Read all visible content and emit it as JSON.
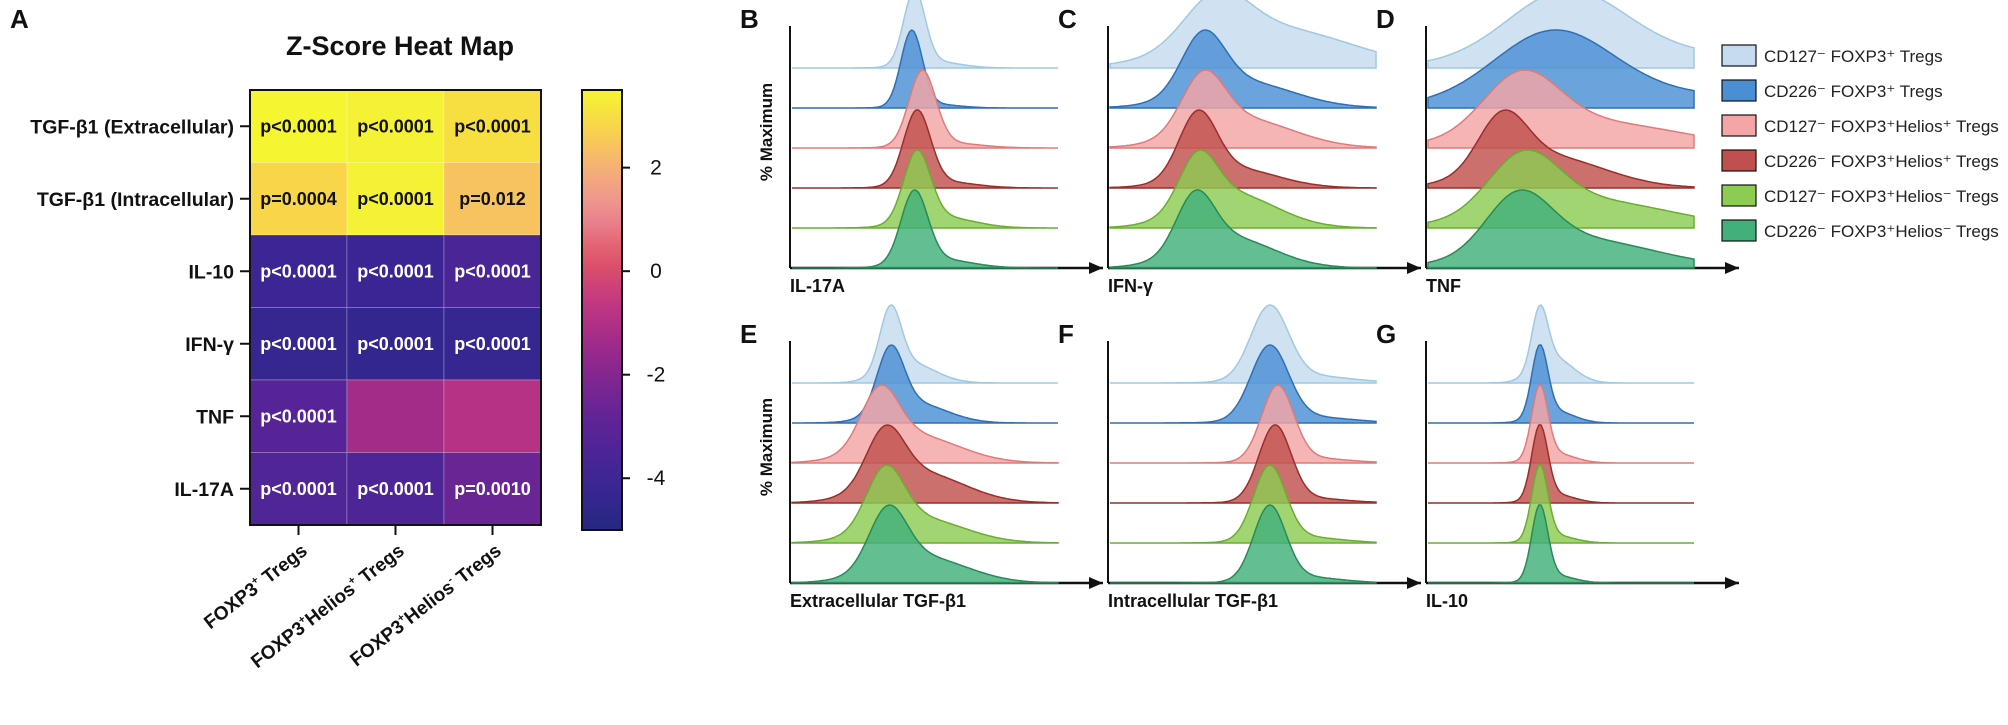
{
  "chart_data": [
    {
      "type": "heatmap",
      "panel": "A",
      "title": "Z-Score Heat Map",
      "rows": [
        "TGF-β1 (Extracellular)",
        "TGF-β1 (Intracellular)",
        "IL-10",
        "IFN-γ",
        "TNF",
        "IL-17A"
      ],
      "columns": [
        {
          "base": "FOXP3",
          "sup1": "+",
          "mid": "",
          "sup2": "",
          "tail": " Tregs"
        },
        {
          "base": "FOXP3",
          "sup1": "+",
          "mid": "Helios",
          "sup2": "+",
          "tail": " Tregs"
        },
        {
          "base": "FOXP3",
          "sup1": "+",
          "mid": "Helios",
          "sup2": "-",
          "tail": " Tregs"
        }
      ],
      "values": [
        [
          3.5,
          3.4,
          3.0
        ],
        [
          2.8,
          3.4,
          2.4
        ],
        [
          -4.0,
          -4.1,
          -3.6
        ],
        [
          -4.3,
          -4.4,
          -4.3
        ],
        [
          -3.2,
          -1.3,
          -0.9
        ],
        [
          -3.4,
          -3.5,
          -2.6
        ]
      ],
      "pvalues": [
        [
          "p<0.0001",
          "p<0.0001",
          "p<0.0001"
        ],
        [
          "p=0.0004",
          "p<0.0001",
          "p=0.012"
        ],
        [
          "p<0.0001",
          "p<0.0001",
          "p<0.0001"
        ],
        [
          "p<0.0001",
          "p<0.0001",
          "p<0.0001"
        ],
        [
          "p<0.0001",
          "",
          ""
        ],
        [
          "p<0.0001",
          "p<0.0001",
          "p=0.0010"
        ]
      ],
      "colorbar": {
        "range": [
          -5,
          3.5
        ],
        "ticks": [
          2,
          0,
          -2,
          -4
        ]
      }
    },
    {
      "type": "histogram_overlay",
      "panels": [
        {
          "letter": "B",
          "xlabel": "IL-17A",
          "ylabel": "% Maximum",
          "curves": [
            {
              "c": 0.46,
              "w": 0.04,
              "t": 0.25
            },
            {
              "c": 0.45,
              "w": 0.04,
              "t": 0.15
            },
            {
              "c": 0.49,
              "w": 0.05,
              "t": 0.2
            },
            {
              "c": 0.47,
              "w": 0.05,
              "t": 0.25
            },
            {
              "c": 0.47,
              "w": 0.05,
              "t": 0.45
            },
            {
              "c": 0.46,
              "w": 0.05,
              "t": 0.35
            }
          ]
        },
        {
          "letter": "C",
          "xlabel": "IFN-γ",
          "ylabel": "",
          "curves": [
            {
              "c": 0.4,
              "w": 0.12,
              "t": 2.4
            },
            {
              "c": 0.35,
              "w": 0.08,
              "t": 1.3
            },
            {
              "c": 0.35,
              "w": 0.08,
              "t": 1.5
            },
            {
              "c": 0.33,
              "w": 0.07,
              "t": 0.9
            },
            {
              "c": 0.33,
              "w": 0.07,
              "t": 1.9
            },
            {
              "c": 0.32,
              "w": 0.07,
              "t": 1.6
            }
          ]
        },
        {
          "letter": "D",
          "xlabel": "TNF",
          "ylabel": "",
          "curves": [
            {
              "c": 0.52,
              "w": 0.22,
              "t": 0.6
            },
            {
              "c": 0.47,
              "w": 0.22,
              "t": 0.6
            },
            {
              "c": 0.35,
              "w": 0.14,
              "t": 1.3
            },
            {
              "c": 0.28,
              "w": 0.09,
              "t": 1.7
            },
            {
              "c": 0.36,
              "w": 0.13,
              "t": 1.4
            },
            {
              "c": 0.34,
              "w": 0.12,
              "t": 1.5
            }
          ]
        },
        {
          "letter": "E",
          "xlabel": "Extracellular TGF-β1",
          "ylabel": "% Maximum",
          "curves": [
            {
              "c": 0.37,
              "w": 0.04,
              "t": 0.9
            },
            {
              "c": 0.37,
              "w": 0.05,
              "t": 0.9
            },
            {
              "c": 0.33,
              "w": 0.07,
              "t": 1.4
            },
            {
              "c": 0.35,
              "w": 0.07,
              "t": 1.6
            },
            {
              "c": 0.35,
              "w": 0.07,
              "t": 1.2
            },
            {
              "c": 0.36,
              "w": 0.07,
              "t": 1.3
            }
          ]
        },
        {
          "letter": "F",
          "xlabel": "Intracellular TGF-β1",
          "ylabel": "",
          "curves": [
            {
              "c": 0.6,
              "w": 0.07,
              "t": 0.3
            },
            {
              "c": 0.6,
              "w": 0.07,
              "t": 0.25
            },
            {
              "c": 0.63,
              "w": 0.06,
              "t": 0.2
            },
            {
              "c": 0.62,
              "w": 0.06,
              "t": 0.2
            },
            {
              "c": 0.6,
              "w": 0.06,
              "t": 0.25
            },
            {
              "c": 0.6,
              "w": 0.06,
              "t": 0.25
            }
          ]
        },
        {
          "letter": "G",
          "xlabel": "IL-10",
          "ylabel": "",
          "curves": [
            {
              "c": 0.42,
              "w": 0.03,
              "t": 1.2
            },
            {
              "c": 0.42,
              "w": 0.03,
              "t": 0.5
            },
            {
              "c": 0.42,
              "w": 0.03,
              "t": 0.4
            },
            {
              "c": 0.42,
              "w": 0.03,
              "t": 0.35
            },
            {
              "c": 0.42,
              "w": 0.03,
              "t": 0.3
            },
            {
              "c": 0.42,
              "w": 0.03,
              "t": 0.3
            }
          ]
        }
      ],
      "series": [
        {
          "name": "CD127⁻ FOXP3⁺ Tregs",
          "fill": "#c6dbef",
          "stroke": "#9ecae1"
        },
        {
          "name": "CD226⁻ FOXP3⁺ Tregs",
          "fill": "#4a8fd4",
          "stroke": "#2f6fb5"
        },
        {
          "name": "CD127⁻ FOXP3⁺Helios⁺ Tregs",
          "fill": "#f4a5a5",
          "stroke": "#e07a7a"
        },
        {
          "name": "CD226⁻ FOXP3⁺Helios⁺ Tregs",
          "fill": "#c0504d",
          "stroke": "#9b2e2b"
        },
        {
          "name": "CD127⁻ FOXP3⁺Helios⁻ Tregs",
          "fill": "#8ccc52",
          "stroke": "#6aad33"
        },
        {
          "name": "CD226⁻ FOXP3⁺Helios⁻ Tregs",
          "fill": "#41b07a",
          "stroke": "#2a8a57"
        }
      ]
    }
  ]
}
